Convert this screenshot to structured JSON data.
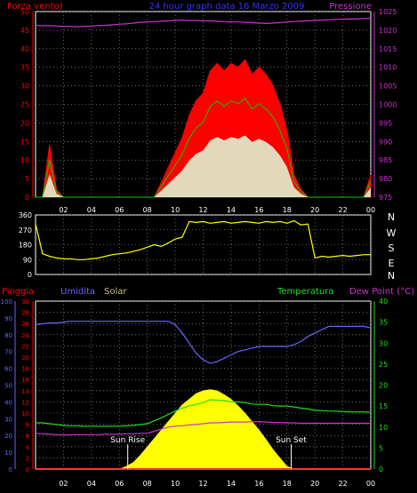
{
  "header": {
    "left_label": "Forza vento)",
    "title": "24 hour graph data  16 Marzo 2009",
    "right_label": "Pressione"
  },
  "wind_axis": {
    "ticks": [
      "0",
      "5",
      "10",
      "15",
      "20",
      "25",
      "30",
      "35",
      "40",
      "45",
      "50"
    ]
  },
  "pressure_axis": {
    "ticks": [
      "975",
      "980",
      "985",
      "990",
      "995",
      "1000",
      "1005",
      "1010",
      "1015",
      "1020",
      "1025"
    ]
  },
  "direction_axis": {
    "ticks": [
      "0",
      "90",
      "180",
      "270",
      "360"
    ],
    "compass": [
      "N",
      "W",
      "S",
      "E",
      "N"
    ]
  },
  "bottom_labels": {
    "rain": "Pioggia",
    "humidity": "Umidita",
    "solar": "Solar",
    "temperature": "Temperatura",
    "dewpoint": "Dew Point (°C)"
  },
  "humidity_axis": {
    "ticks": [
      "0",
      "10",
      "20",
      "30",
      "40",
      "50",
      "60",
      "70",
      "80",
      "90",
      "100"
    ]
  },
  "rain_axis": {
    "ticks": [
      "0",
      "2",
      "4",
      "6",
      "8",
      "10",
      "12",
      "14",
      "16",
      "18",
      "20",
      "22",
      "24",
      "26",
      "28",
      "30"
    ]
  },
  "temp_axis": {
    "ticks": [
      "0",
      "5",
      "10",
      "15",
      "20",
      "25",
      "30",
      "35",
      "40"
    ]
  },
  "sun": {
    "rise": "Sun Rise",
    "set": "Sun Set"
  },
  "hours": [
    "02",
    "04",
    "06",
    "08",
    "10",
    "12",
    "14",
    "16",
    "18",
    "20",
    "22",
    "00"
  ],
  "colors": {
    "wind": "#ff0000",
    "gust": "#ffffff",
    "avg": "#00cc00",
    "pressure": "#cc33cc",
    "direction": "#ffff00",
    "humidity": "#6666ff",
    "solar": "#ffff00",
    "temperature": "#22dd22",
    "dewpoint": "#cc33cc"
  },
  "chart_data": [
    {
      "type": "line",
      "title": "24 hour graph data  16 Marzo 2009",
      "xlabel": "",
      "ylabel": "Forza vento)",
      "x": [
        0,
        0.5,
        1,
        1.5,
        2,
        2.5,
        3,
        3.5,
        4,
        4.5,
        5,
        5.5,
        6,
        6.5,
        7,
        7.5,
        8,
        8.5,
        9,
        9.5,
        10,
        10.5,
        11,
        11.5,
        12,
        12.5,
        13,
        13.5,
        14,
        14.5,
        15,
        15.5,
        16,
        16.5,
        17,
        17.5,
        18,
        18.5,
        19,
        19.5,
        20,
        20.5,
        21,
        21.5,
        22,
        22.5,
        23,
        23.5,
        24
      ],
      "series": [
        {
          "name": "Forza vento)",
          "axis": "left",
          "values": [
            0,
            0,
            14,
            2,
            0,
            0,
            0,
            0,
            0,
            0,
            0,
            0,
            0,
            0,
            0,
            0,
            0,
            0,
            4,
            8,
            12,
            16,
            22,
            26,
            28,
            34,
            36,
            34,
            36,
            35,
            37,
            33,
            35,
            33,
            30,
            25,
            18,
            6,
            2,
            0,
            0,
            0,
            0,
            0,
            0,
            0,
            0,
            0,
            6
          ]
        },
        {
          "name": "Pressione",
          "axis": "right",
          "values": [
            1021.3,
            1021.2,
            1021.2,
            1021.1,
            1021.0,
            1021.0,
            1020.9,
            1021.0,
            1021.1,
            1021.2,
            1021.3,
            1021.4,
            1021.6,
            1021.7,
            1021.9,
            1022.1,
            1022.2,
            1022.3,
            1022.4,
            1022.5,
            1022.6,
            1022.7,
            1022.6,
            1022.6,
            1022.5,
            1022.5,
            1022.4,
            1022.3,
            1022.2,
            1022.2,
            1022.1,
            1022.0,
            1021.9,
            1021.8,
            1021.9,
            1022.0,
            1022.2,
            1022.3,
            1022.4,
            1022.5,
            1022.6,
            1022.7,
            1022.8,
            1022.9,
            1022.9,
            1023.0,
            1023.0,
            1023.1,
            1023.1
          ]
        }
      ],
      "ylim": [
        0,
        50
      ],
      "ylim_right": [
        975,
        1025
      ],
      "xlim": [
        0,
        24
      ]
    },
    {
      "type": "line",
      "x": [
        0,
        0.5,
        1,
        1.5,
        2,
        2.5,
        3,
        3.5,
        4,
        4.5,
        5,
        5.5,
        6,
        6.5,
        7,
        7.5,
        8,
        8.5,
        9,
        9.5,
        10,
        10.5,
        11,
        11.5,
        12,
        12.5,
        13,
        13.5,
        14,
        14.5,
        15,
        15.5,
        16,
        16.5,
        17,
        17.5,
        18,
        18.5,
        19,
        19.5,
        20,
        20.5,
        21,
        21.5,
        22,
        22.5,
        23,
        23.5,
        24
      ],
      "series": [
        {
          "name": "Direction",
          "values": [
            305,
            125,
            110,
            100,
            95,
            95,
            90,
            90,
            95,
            100,
            110,
            120,
            125,
            130,
            140,
            150,
            165,
            180,
            170,
            190,
            215,
            225,
            320,
            315,
            320,
            310,
            315,
            320,
            310,
            315,
            320,
            315,
            310,
            320,
            315,
            320,
            310,
            325,
            300,
            305,
            100,
            110,
            105,
            110,
            115,
            110,
            115,
            120,
            120
          ]
        }
      ],
      "ylim": [
        0,
        360
      ],
      "xlim": [
        0,
        24
      ]
    },
    {
      "type": "area",
      "x": [
        0,
        0.5,
        1,
        1.5,
        2,
        2.5,
        3,
        3.5,
        4,
        4.5,
        5,
        5.5,
        6,
        6.5,
        7,
        7.5,
        8,
        8.5,
        9,
        9.5,
        10,
        10.5,
        11,
        11.5,
        12,
        12.5,
        13,
        13.5,
        14,
        14.5,
        15,
        15.5,
        16,
        16.5,
        17,
        17.5,
        18,
        18.5,
        19,
        19.5,
        20,
        20.5,
        21,
        21.5,
        22,
        22.5,
        23,
        23.5,
        24
      ],
      "series": [
        {
          "name": "Umidita",
          "axis": "humidity",
          "values": [
            86,
            86.5,
            87,
            87,
            87.5,
            88,
            88,
            88,
            88,
            88,
            88,
            88,
            88,
            88,
            88,
            88,
            88,
            88,
            88,
            88,
            86,
            81,
            75,
            69,
            65,
            63,
            64,
            66,
            68,
            70,
            71,
            72,
            73,
            73,
            73,
            73,
            73,
            74,
            76,
            79,
            81,
            83,
            85,
            85,
            85,
            85,
            85,
            85,
            84
          ]
        },
        {
          "name": "Solar",
          "axis": "rain",
          "values": [
            0,
            0,
            0,
            0,
            0,
            0,
            0,
            0,
            0,
            0,
            0,
            0,
            0,
            0.5,
            1.2,
            2.5,
            4,
            5.5,
            7,
            8.5,
            10,
            11.5,
            12.5,
            13.5,
            14,
            14.2,
            14,
            13.3,
            12.5,
            11.3,
            10,
            8.5,
            7,
            5.3,
            3.5,
            2,
            0.5,
            0,
            0,
            0,
            0,
            0,
            0,
            0,
            0,
            0,
            0,
            0,
            0
          ]
        },
        {
          "name": "Temperatura",
          "axis": "temp",
          "values": [
            11,
            11,
            10.8,
            10.6,
            10.4,
            10.3,
            10.3,
            10.2,
            10.2,
            10.2,
            10.2,
            10.2,
            10.2,
            10.3,
            10.4,
            10.6,
            10.8,
            11.5,
            12.2,
            13,
            13.8,
            14.5,
            15,
            15.4,
            15.8,
            16.5,
            16.4,
            16.3,
            16,
            16,
            15.8,
            15.5,
            15.4,
            15.4,
            15.1,
            15,
            15,
            14.8,
            14.5,
            14.3,
            14,
            13.9,
            13.8,
            13.8,
            13.7,
            13.6,
            13.6,
            13.6,
            13.5
          ]
        },
        {
          "name": "Dew Point (°C)",
          "axis": "temp",
          "values": [
            8.5,
            8.4,
            8.3,
            8.2,
            8.1,
            8.2,
            8.2,
            8.2,
            8.2,
            8.2,
            8.3,
            8.3,
            8.3,
            8.4,
            8.4,
            8.5,
            8.5,
            9,
            9.5,
            10,
            10.2,
            10.3,
            10.5,
            10.6,
            10.8,
            11,
            11,
            11.1,
            11.2,
            11.2,
            11.2,
            11.3,
            11.3,
            11.2,
            11.1,
            11.1,
            11,
            11,
            10.9,
            10.9,
            10.9,
            10.9,
            10.9,
            10.9,
            10.9,
            10.9,
            10.9,
            10.9,
            10.9
          ]
        },
        {
          "name": "Pioggia",
          "axis": "rain",
          "values": [
            0,
            0,
            0,
            0,
            0,
            0,
            0,
            0,
            0,
            0,
            0,
            0,
            0,
            0,
            0,
            0,
            0,
            0,
            0,
            0,
            0,
            0,
            0,
            0,
            0,
            0,
            0,
            0,
            0,
            0,
            0,
            0,
            0,
            0,
            0,
            0,
            0,
            0,
            0,
            0,
            0,
            0,
            0,
            0,
            0,
            0,
            0,
            0,
            0
          ]
        }
      ],
      "ylim_humidity": [
        0,
        100
      ],
      "ylim_rain": [
        0,
        30
      ],
      "ylim_temp": [
        0,
        40
      ],
      "xlim": [
        0,
        24
      ],
      "sunrise_hour": 6.6,
      "sunset_hour": 18.3
    }
  ]
}
